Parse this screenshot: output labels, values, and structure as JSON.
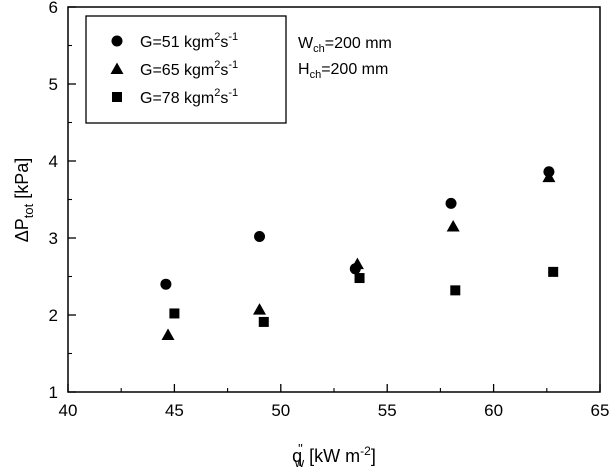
{
  "chart_data": {
    "type": "scatter",
    "xlabel": {
      "main": "q",
      "sup": "\"",
      "sub": "w",
      "unit": " [kW m",
      "unit_sup": "-2",
      "unit_close": "]"
    },
    "ylabel": {
      "main": "ΔP",
      "sub": "tot",
      "unit": " [kPa]"
    },
    "xlim": [
      40,
      65
    ],
    "ylim": [
      1,
      6
    ],
    "xticks": [
      40,
      45,
      50,
      55,
      60,
      65
    ],
    "yticks": [
      1,
      2,
      3,
      4,
      5,
      6
    ],
    "grid": false,
    "legend_position": "top-left",
    "series": [
      {
        "name": "G=51 kgm2s-1",
        "label": {
          "pre": "G=51 kgm",
          "sup1": "2",
          "mid": "s",
          "sup2": "-1"
        },
        "marker": "circle",
        "points": [
          [
            44.6,
            2.4
          ],
          [
            49.0,
            3.02
          ],
          [
            53.5,
            2.6
          ],
          [
            58.0,
            3.45
          ],
          [
            62.6,
            3.86
          ]
        ]
      },
      {
        "name": "G=65 kgm2s-1",
        "label": {
          "pre": "G=65 kgm",
          "sup1": "2",
          "mid": "s",
          "sup2": "-1"
        },
        "marker": "triangle",
        "points": [
          [
            44.7,
            1.74
          ],
          [
            49.0,
            2.07
          ],
          [
            53.6,
            2.66
          ],
          [
            58.1,
            3.15
          ],
          [
            62.6,
            3.79
          ]
        ]
      },
      {
        "name": "G=78 kgm2s-1",
        "label": {
          "pre": "G=78 kgm",
          "sup1": "2",
          "mid": "s",
          "sup2": "-1"
        },
        "marker": "square",
        "points": [
          [
            45.0,
            2.02
          ],
          [
            49.2,
            1.91
          ],
          [
            53.7,
            2.48
          ],
          [
            58.2,
            2.32
          ],
          [
            62.8,
            2.56
          ]
        ]
      }
    ],
    "annotations": [
      {
        "main": "W",
        "sub": "ch",
        "rest": "=200 mm"
      },
      {
        "main": "H",
        "sub": "ch",
        "rest": "=200 mm"
      }
    ]
  },
  "colors": {
    "marker": "#000000",
    "axis": "#000000",
    "background": "#ffffff"
  }
}
